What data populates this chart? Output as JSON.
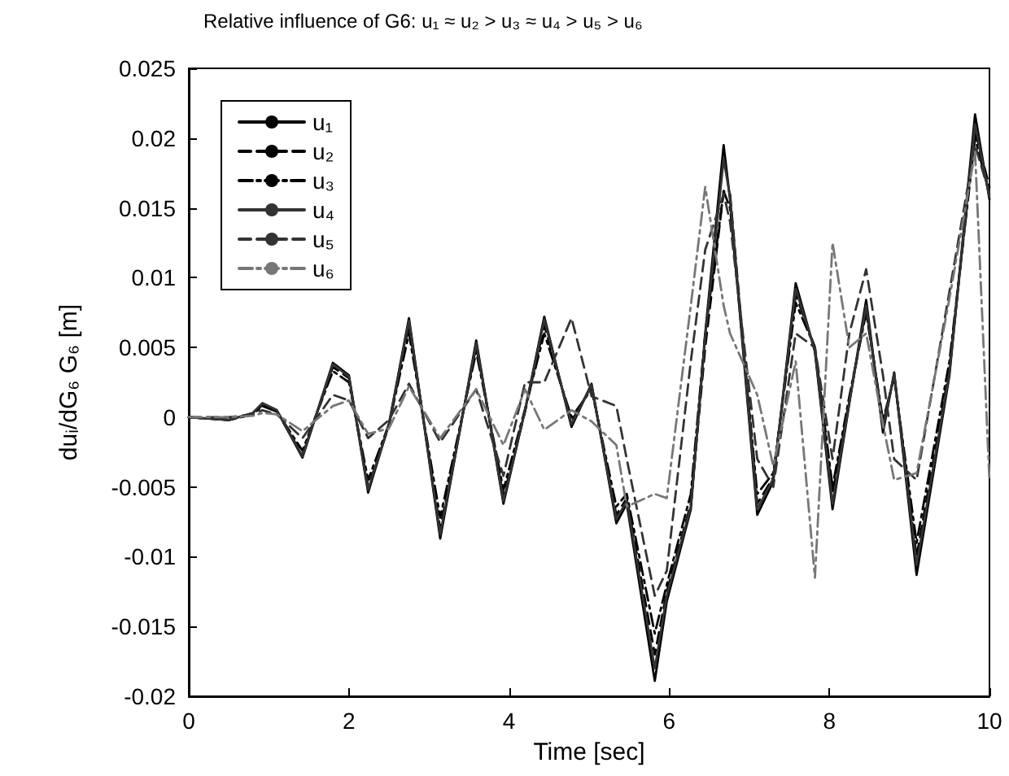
{
  "chart_data": {
    "type": "line",
    "title": "Relative influence of G6: u₁ ≈ u₂ > u₃ ≈ u₄ > u₅ > u₆",
    "xlabel": "Time [sec]",
    "ylabel": "duᵢ/dG₆ G₆ [m]",
    "x": [
      0,
      0.5,
      0.8,
      0.92,
      1.1,
      1.42,
      1.8,
      2.0,
      2.24,
      2.5,
      2.75,
      3.14,
      3.59,
      3.93,
      4.2,
      4.44,
      4.78,
      5.03,
      5.34,
      5.47,
      5.82,
      5.97,
      6.27,
      6.45,
      6.68,
      6.76,
      7.1,
      7.3,
      7.58,
      7.82,
      8.04,
      8.25,
      8.46,
      8.67,
      8.81,
      9.09,
      9.5,
      9.82,
      10
    ],
    "series": [
      {
        "name": "u₁",
        "color": "#000000",
        "line_style": "solid",
        "values": [
          0,
          -0.0002,
          0.0003,
          0.001,
          0.0005,
          -0.0029,
          0.0039,
          0.003,
          -0.0054,
          -0.0005,
          0.0071,
          -0.0087,
          0.0055,
          -0.0062,
          0.0005,
          0.0072,
          -0.0007,
          0.0024,
          -0.0076,
          -0.0062,
          -0.0189,
          -0.0132,
          -0.0066,
          0.006,
          0.0195,
          0.0156,
          -0.007,
          -0.0046,
          0.0096,
          0.0047,
          -0.0066,
          0.001,
          0.0084,
          -0.0011,
          0.0032,
          -0.0113,
          0.003,
          0.0217,
          0.0156
        ]
      },
      {
        "name": "u₂",
        "color": "#000000",
        "line_style": "dashed",
        "values": [
          0,
          -0.0002,
          0.0002,
          0.0009,
          0.0004,
          -0.0027,
          0.0036,
          0.0028,
          -0.005,
          -0.0006,
          0.0066,
          -0.008,
          0.0051,
          -0.0057,
          0.0004,
          0.0066,
          -0.0003,
          0.0022,
          -0.007,
          -0.0058,
          -0.017,
          -0.0125,
          -0.0062,
          0.005,
          0.0162,
          0.016,
          -0.0062,
          -0.0043,
          0.0088,
          0.005,
          -0.0055,
          0.0012,
          0.0078,
          -0.0005,
          0.003,
          -0.01,
          0.0035,
          0.0205,
          0.0165
        ]
      },
      {
        "name": "u₃",
        "color": "#000000",
        "line_style": "dashdot",
        "values": [
          0,
          -0.0002,
          0.0002,
          0.0008,
          0.0004,
          -0.0024,
          0.0033,
          0.0025,
          -0.0045,
          -0.0005,
          0.006,
          -0.0072,
          0.0047,
          -0.0052,
          0.0006,
          0.006,
          0.0,
          0.002,
          -0.0064,
          -0.0055,
          -0.0155,
          -0.012,
          -0.0055,
          0.006,
          0.0162,
          0.015,
          -0.0055,
          -0.004,
          0.0082,
          0.005,
          -0.005,
          0.0015,
          0.0075,
          -0.0002,
          0.0028,
          -0.009,
          0.004,
          0.02,
          0.016
        ]
      },
      {
        "name": "u₄",
        "color": "#333333",
        "line_style": "solid",
        "values": [
          0,
          -0.0002,
          0.0003,
          0.001,
          0.0005,
          -0.0028,
          0.0038,
          0.0029,
          -0.0052,
          -0.0005,
          0.0069,
          -0.0084,
          0.0053,
          -0.006,
          0.0005,
          0.007,
          -0.0005,
          0.0023,
          -0.0073,
          -0.006,
          -0.018,
          -0.0128,
          -0.0064,
          0.0058,
          0.0185,
          0.0158,
          -0.0066,
          -0.0044,
          0.0092,
          0.0048,
          -0.0062,
          0.0011,
          0.008,
          -0.0008,
          0.0031,
          -0.0106,
          0.0032,
          0.021,
          0.0158
        ]
      },
      {
        "name": "u₅",
        "color": "#333333",
        "line_style": "dashed",
        "values": [
          0,
          0,
          0.0002,
          0.0005,
          0.0002,
          -0.0015,
          0.0016,
          0.0012,
          -0.0015,
          -0.0002,
          0.0024,
          -0.0018,
          0.002,
          -0.0042,
          0.0025,
          0.0025,
          0.0071,
          0.0015,
          0.0008,
          -0.003,
          -0.0128,
          -0.011,
          0.004,
          0.012,
          0.016,
          0.014,
          -0.003,
          -0.005,
          0.006,
          0.005,
          -0.003,
          0.006,
          0.0106,
          0.003,
          -0.003,
          -0.0045,
          0.009,
          0.0195,
          0.016
        ]
      },
      {
        "name": "u₆",
        "color": "#777777",
        "line_style": "dashdot",
        "values": [
          0,
          0,
          0.0001,
          0.0003,
          0.0002,
          -0.001,
          0.0008,
          0.0012,
          -0.0012,
          -0.0008,
          0.0022,
          -0.0015,
          0.002,
          -0.002,
          0.002,
          -0.0009,
          0.0005,
          -0.0003,
          -0.002,
          -0.0064,
          -0.0055,
          -0.0058,
          0.008,
          0.0165,
          0.008,
          0.006,
          0.0016,
          -0.0035,
          0.004,
          -0.0115,
          0.0125,
          0.005,
          0.006,
          -0.0005,
          -0.0045,
          -0.004,
          0.0085,
          0.019,
          -0.0046
        ]
      }
    ],
    "xlim": [
      0,
      10
    ],
    "xticks": [
      0,
      2,
      4,
      6,
      8,
      10
    ],
    "ylim": [
      -0.02,
      0.025
    ],
    "yticks": [
      -0.02,
      -0.015,
      -0.01,
      -0.005,
      0,
      0.005,
      0.01,
      0.015,
      0.02,
      0.025
    ],
    "grid": false,
    "legend": "top left",
    "marker": "none"
  }
}
